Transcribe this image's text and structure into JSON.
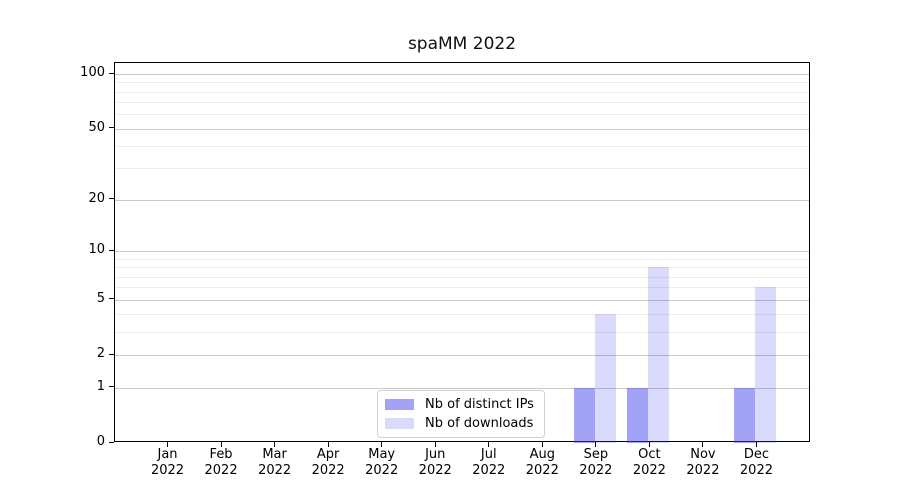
{
  "chart_data": {
    "type": "bar",
    "title": "spaMM 2022",
    "categories": [
      "Jan 2022",
      "Feb 2022",
      "Mar 2022",
      "Apr 2022",
      "May 2022",
      "Jun 2022",
      "Jul 2022",
      "Aug 2022",
      "Sep 2022",
      "Oct 2022",
      "Nov 2022",
      "Dec 2022"
    ],
    "x_tick_month": [
      "Jan",
      "Feb",
      "Mar",
      "Apr",
      "May",
      "Jun",
      "Jul",
      "Aug",
      "Sep",
      "Oct",
      "Nov",
      "Dec"
    ],
    "x_tick_year": "2022",
    "series": [
      {
        "name": "Nb of distinct IPs",
        "color": "rgba(70,70,240,0.5)",
        "values": [
          0,
          0,
          0,
          0,
          0,
          0,
          0,
          0,
          1,
          1,
          0,
          1
        ]
      },
      {
        "name": "Nb of downloads",
        "color": "rgba(70,70,240,0.2)",
        "values": [
          0,
          0,
          0,
          0,
          0,
          0,
          0,
          0,
          4,
          8,
          0,
          6
        ]
      }
    ],
    "xlabel": "",
    "ylabel": "",
    "yscale": "log1p",
    "yticks": [
      0,
      1,
      2,
      5,
      10,
      20,
      50,
      100
    ],
    "minor_yticks": [
      3,
      4,
      6,
      7,
      8,
      9,
      30,
      40,
      60,
      70,
      80,
      90
    ],
    "ylim": [
      0,
      115
    ],
    "grid": "horizontal",
    "legend_position": "bottom-center",
    "colors": {
      "major_grid": "#c9c9c9",
      "minor_grid": "#ededed",
      "axis": "#000000",
      "background": "#ffffff",
      "text": "#000000"
    }
  }
}
